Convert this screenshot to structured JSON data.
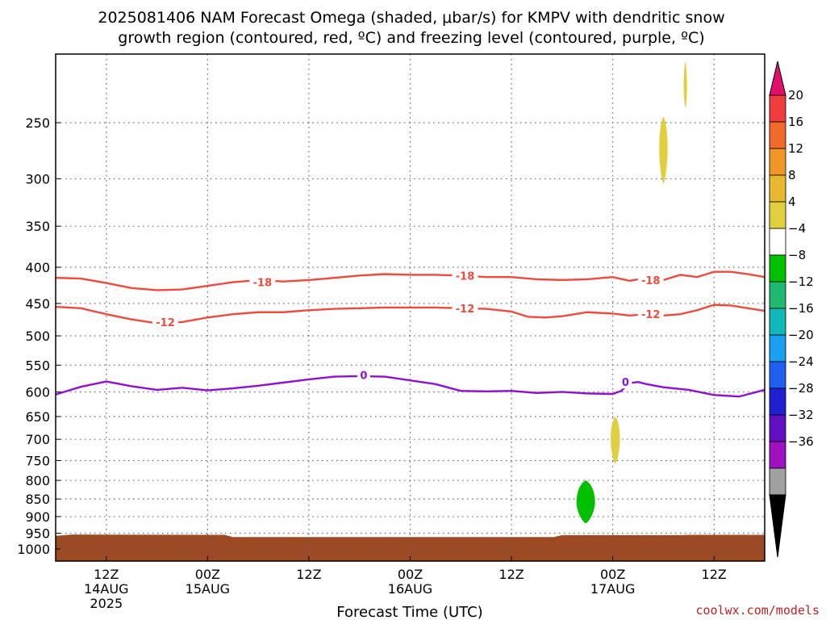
{
  "title_line1": "2025081406 NAM Forecast Omega (shaded, μbar/s) for KMPV with dendritic snow",
  "title_line2": "growth region (contoured, red, ºC) and freezing level (contoured, purple, ºC)",
  "credit": "coolwx.com/models",
  "colors": {
    "dgz": "#f04a3c",
    "freezing": "#9010d0",
    "terrain": "#9c4a24",
    "grid": "#666666"
  },
  "chart_data": {
    "type": "contour",
    "xlabel": "Forecast Time (UTC)",
    "x_range_hours": [
      0,
      84
    ],
    "y_scale": "log-pressure",
    "y_range_hpa": [
      1040,
      200
    ],
    "x_ticks": [
      {
        "hour": 6,
        "l1": "12Z",
        "l2": "14AUG",
        "l3": "2025"
      },
      {
        "hour": 18,
        "l1": "00Z",
        "l2": "15AUG",
        "l3": ""
      },
      {
        "hour": 30,
        "l1": "12Z",
        "l2": "",
        "l3": ""
      },
      {
        "hour": 42,
        "l1": "00Z",
        "l2": "16AUG",
        "l3": ""
      },
      {
        "hour": 54,
        "l1": "12Z",
        "l2": "",
        "l3": ""
      },
      {
        "hour": 66,
        "l1": "00Z",
        "l2": "17AUG",
        "l3": ""
      },
      {
        "hour": 78,
        "l1": "12Z",
        "l2": "",
        "l3": ""
      }
    ],
    "y_ticks": [
      250,
      300,
      350,
      400,
      450,
      500,
      550,
      600,
      650,
      700,
      750,
      800,
      850,
      900,
      950,
      1000
    ],
    "series": [
      {
        "name": "-18",
        "kind": "dgz",
        "points": [
          [
            0,
            414
          ],
          [
            3,
            415
          ],
          [
            6,
            421
          ],
          [
            9,
            428
          ],
          [
            12,
            431
          ],
          [
            15,
            430
          ],
          [
            18,
            425
          ],
          [
            21,
            420
          ],
          [
            24,
            417
          ],
          [
            27,
            419
          ],
          [
            30,
            417
          ],
          [
            33,
            414
          ],
          [
            36,
            411
          ],
          [
            39,
            409
          ],
          [
            42,
            410
          ],
          [
            45,
            410
          ],
          [
            48,
            411
          ],
          [
            51,
            413
          ],
          [
            54,
            413
          ],
          [
            57,
            416
          ],
          [
            60,
            417
          ],
          [
            63,
            416
          ],
          [
            66,
            413
          ],
          [
            68,
            418
          ],
          [
            70,
            414
          ],
          [
            72,
            417
          ],
          [
            74,
            410
          ],
          [
            76,
            413
          ],
          [
            78,
            406
          ],
          [
            80,
            406
          ],
          [
            82,
            409
          ],
          [
            84,
            413
          ]
        ],
        "labels": [
          [
            24.5,
            420
          ],
          [
            48.5,
            411
          ],
          [
            70.5,
            417
          ]
        ]
      },
      {
        "name": "-12",
        "kind": "dgz",
        "points": [
          [
            0,
            455
          ],
          [
            3,
            457
          ],
          [
            6,
            466
          ],
          [
            9,
            474
          ],
          [
            12,
            480
          ],
          [
            15,
            478
          ],
          [
            18,
            471
          ],
          [
            21,
            466
          ],
          [
            24,
            463
          ],
          [
            27,
            463
          ],
          [
            30,
            460
          ],
          [
            33,
            458
          ],
          [
            36,
            457
          ],
          [
            39,
            456
          ],
          [
            42,
            456
          ],
          [
            45,
            456
          ],
          [
            48,
            457
          ],
          [
            51,
            458
          ],
          [
            54,
            462
          ],
          [
            56,
            470
          ],
          [
            58,
            471
          ],
          [
            60,
            469
          ],
          [
            63,
            463
          ],
          [
            66,
            465
          ],
          [
            68,
            468
          ],
          [
            70,
            466
          ],
          [
            72,
            468
          ],
          [
            74,
            466
          ],
          [
            76,
            460
          ],
          [
            78,
            452
          ],
          [
            80,
            453
          ],
          [
            82,
            457
          ],
          [
            84,
            461
          ]
        ],
        "labels": [
          [
            13.0,
            478
          ],
          [
            48.5,
            457
          ],
          [
            70.5,
            466
          ]
        ]
      },
      {
        "name": "0",
        "kind": "freezing",
        "points": [
          [
            0,
            605
          ],
          [
            3,
            590
          ],
          [
            6,
            580
          ],
          [
            9,
            589
          ],
          [
            12,
            596
          ],
          [
            15,
            592
          ],
          [
            18,
            597
          ],
          [
            21,
            593
          ],
          [
            24,
            588
          ],
          [
            27,
            582
          ],
          [
            30,
            576
          ],
          [
            33,
            571
          ],
          [
            36,
            570
          ],
          [
            39,
            571
          ],
          [
            42,
            578
          ],
          [
            45,
            585
          ],
          [
            48,
            598
          ],
          [
            51,
            599
          ],
          [
            54,
            598
          ],
          [
            57,
            602
          ],
          [
            60,
            600
          ],
          [
            63,
            603
          ],
          [
            66,
            604
          ],
          [
            67,
            598
          ],
          [
            68,
            583
          ],
          [
            69,
            581
          ],
          [
            70,
            585
          ],
          [
            72,
            591
          ],
          [
            75,
            596
          ],
          [
            78,
            606
          ],
          [
            81,
            609
          ],
          [
            84,
            596
          ]
        ],
        "labels": [
          [
            36.5,
            568
          ],
          [
            67.5,
            581
          ]
        ]
      }
    ],
    "omega_shading": [
      {
        "value_range": [
          4,
          8
        ],
        "color": "#e0d040",
        "center": [
          72.0,
          273
        ],
        "half_width_h": 0.5,
        "p_span": [
          245,
          305
        ]
      },
      {
        "value_range": [
          4,
          8
        ],
        "color": "#e0d040",
        "center": [
          74.6,
          224
        ],
        "half_width_h": 0.2,
        "p_span": [
          205,
          238
        ]
      },
      {
        "value_range": [
          4,
          8
        ],
        "color": "#e0d040",
        "center": [
          66.3,
          700
        ],
        "half_width_h": 0.55,
        "p_span": [
          650,
          758
        ]
      },
      {
        "value_range": [
          -8,
          -4
        ],
        "color": "#00c000",
        "center": [
          62.8,
          860
        ],
        "half_width_h": 1.1,
        "p_span": [
          800,
          920
        ]
      }
    ],
    "terrain": {
      "surface_hpa": [
        [
          0,
          958
        ],
        [
          2,
          954
        ],
        [
          20,
          955
        ],
        [
          21,
          962
        ],
        [
          59,
          962
        ],
        [
          60,
          956
        ],
        [
          74,
          956
        ],
        [
          75,
          955
        ],
        [
          84,
          955
        ]
      ]
    },
    "colorbar": {
      "labels": [
        20,
        16,
        12,
        8,
        4,
        -4,
        -8,
        -12,
        -16,
        -20,
        -24,
        -28,
        -32,
        -36
      ],
      "colors": [
        "#f03c3c",
        "#f06a2a",
        "#f09628",
        "#e8b830",
        "#e0d040",
        "#ffffff",
        "#00c000",
        "#20b870",
        "#10b8b8",
        "#1aa0f0",
        "#2060f0",
        "#2020d0",
        "#6010c0",
        "#a010c0",
        "#a0a0a0"
      ],
      "top_color": "#e0106a",
      "bottom_color": "#000000"
    }
  }
}
